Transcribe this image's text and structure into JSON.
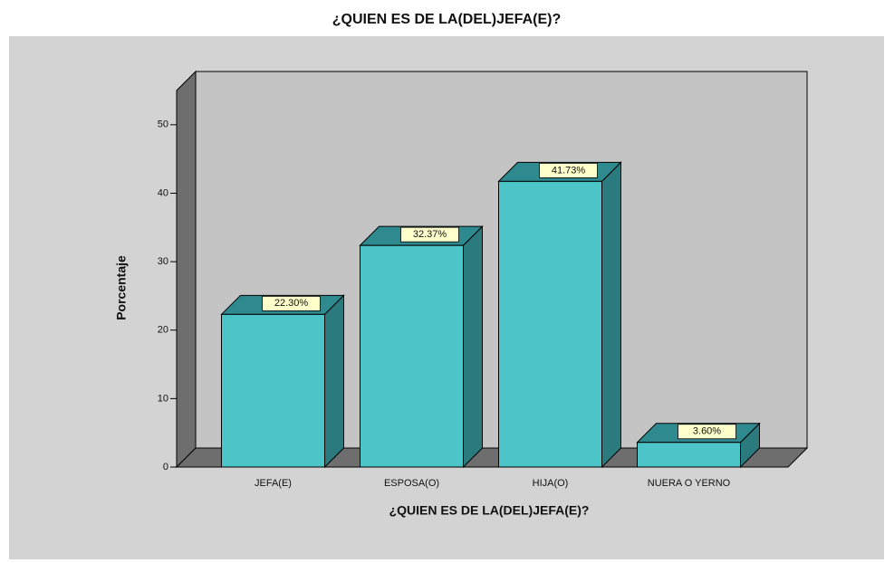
{
  "chart_data": {
    "type": "bar3d",
    "title": "¿QUIEN ES DE LA(DEL)JEFA(E)?",
    "x_label": "¿QUIEN ES DE LA(DEL)JEFA(E)?",
    "y_label": "Porcentaje",
    "categories": [
      "JEFA(E)",
      "ESPOSA(O)",
      "HIJA(O)",
      "NUERA O YERNO"
    ],
    "values": [
      22.3,
      32.37,
      41.73,
      3.6
    ],
    "value_labels": [
      "22.30%",
      "32.37%",
      "41.73%",
      "3.60%"
    ],
    "color": "#4cc4c8",
    "ylim": [
      0,
      55
    ],
    "yticks": [
      0,
      10,
      20,
      30,
      40,
      50
    ],
    "grid": false
  }
}
